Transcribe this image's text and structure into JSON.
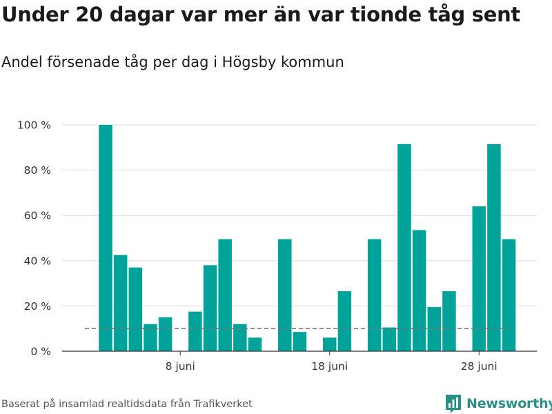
{
  "title": "Under 20 dagar var mer än var tionde tåg sent",
  "subtitle": "Andel försenade tåg per dag i Högsby kommun",
  "footer": "Baserat på insamlad realtidsdata från Trafikverket",
  "brand": {
    "name": "Newsworthy",
    "icon": "newsworthy-chart-logo-icon",
    "color": "#2a8f86"
  },
  "colors": {
    "bar": "#00a39a",
    "grid": "#dddddd",
    "reference": "#777777",
    "axis": "#333333"
  },
  "chart_data": {
    "type": "bar",
    "x_unit": "day of June",
    "x": [
      3,
      4,
      5,
      6,
      7,
      8,
      9,
      10,
      11,
      12,
      13,
      14,
      15,
      16,
      17,
      18,
      19,
      20,
      21,
      22,
      23,
      24,
      25,
      26,
      27,
      28,
      29,
      30
    ],
    "values": [
      100,
      42.5,
      37,
      12,
      15,
      null,
      17.5,
      38,
      49.5,
      12,
      6,
      null,
      49.5,
      8.5,
      null,
      6,
      26.5,
      null,
      49.5,
      10.5,
      91.5,
      53.5,
      19.5,
      26.5,
      null,
      64,
      91.5,
      49.5
    ],
    "x_ticks": [
      {
        "x": 8,
        "label": "8 juni"
      },
      {
        "x": 18,
        "label": "18 juni"
      },
      {
        "x": 28,
        "label": "28 juni"
      }
    ],
    "y_ticks": [
      {
        "value": 0,
        "label": "0 %"
      },
      {
        "value": 20,
        "label": "20 %"
      },
      {
        "value": 40,
        "label": "40 %"
      },
      {
        "value": 60,
        "label": "60 %"
      },
      {
        "value": 80,
        "label": "80 %"
      },
      {
        "value": 100,
        "label": "100 %"
      }
    ],
    "ylim": [
      0,
      100
    ],
    "reference_line": {
      "value": 10,
      "style": "dashed"
    },
    "grid": true,
    "legend": "none",
    "xlabel": "",
    "ylabel": ""
  }
}
